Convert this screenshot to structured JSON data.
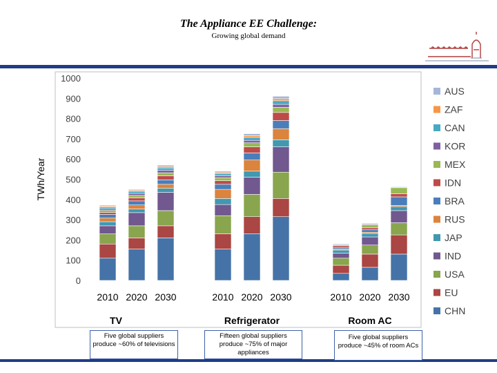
{
  "slide": {
    "title": "The Appliance EE Challenge:",
    "subtitle": "Growing global demand",
    "notes": [
      "Five global suppliers produce ~60% of televisions",
      "Fifteen global suppliers produce ~75% of major appliances",
      "Five global  suppliers produce ~45% of room ACs"
    ],
    "accent_color": "#1f3c88"
  },
  "chart_data": {
    "type": "bar",
    "stacked": true,
    "ylabel": "TWh/Year",
    "ylim": [
      0,
      1000
    ],
    "yticks": [
      0,
      100,
      200,
      300,
      400,
      500,
      600,
      700,
      800,
      900,
      1000
    ],
    "grid": false,
    "legend_position": "right",
    "groups": [
      "TV",
      "Refrigerator",
      "Room AC"
    ],
    "years": [
      "2010",
      "2020",
      "2030"
    ],
    "series": [
      {
        "name": "CHN",
        "color": "#4573a7",
        "values": [
          [
            110,
            155,
            210
          ],
          [
            155,
            230,
            315
          ],
          [
            35,
            65,
            130
          ]
        ]
      },
      {
        "name": "EU",
        "color": "#aa4643",
        "values": [
          [
            70,
            55,
            60
          ],
          [
            75,
            85,
            90
          ],
          [
            40,
            65,
            95
          ]
        ]
      },
      {
        "name": "USA",
        "color": "#89a54e",
        "values": [
          [
            50,
            60,
            75
          ],
          [
            90,
            110,
            130
          ],
          [
            35,
            45,
            60
          ]
        ]
      },
      {
        "name": "IND",
        "color": "#71588f",
        "values": [
          [
            40,
            65,
            90
          ],
          [
            55,
            85,
            125
          ],
          [
            25,
            40,
            60
          ]
        ]
      },
      {
        "name": "JAP",
        "color": "#4198af",
        "values": [
          [
            20,
            18,
            20
          ],
          [
            30,
            30,
            35
          ],
          [
            15,
            17,
            20
          ]
        ]
      },
      {
        "name": "RUS",
        "color": "#db843d",
        "values": [
          [
            18,
            20,
            20
          ],
          [
            45,
            55,
            55
          ],
          [
            6,
            6,
            6
          ]
        ]
      },
      {
        "name": "BRA",
        "color": "#4a7ebb",
        "values": [
          [
            18,
            20,
            22
          ],
          [
            25,
            35,
            40
          ],
          [
            8,
            12,
            42
          ]
        ]
      },
      {
        "name": "IDN",
        "color": "#be4b48",
        "values": [
          [
            10,
            15,
            20
          ],
          [
            18,
            30,
            40
          ],
          [
            8,
            10,
            15
          ]
        ]
      },
      {
        "name": "MEX",
        "color": "#98b954",
        "values": [
          [
            10,
            12,
            15
          ],
          [
            14,
            20,
            25
          ],
          [
            4,
            15,
            30
          ]
        ]
      },
      {
        "name": "KOR",
        "color": "#7d60a0",
        "values": [
          [
            8,
            10,
            12
          ],
          [
            10,
            12,
            15
          ],
          [
            3,
            4,
            3
          ]
        ]
      },
      {
        "name": "CAN",
        "color": "#46aac5",
        "values": [
          [
            8,
            10,
            12
          ],
          [
            10,
            15,
            18
          ],
          [
            3,
            3,
            3
          ]
        ]
      },
      {
        "name": "ZAF",
        "color": "#f79646",
        "values": [
          [
            5,
            5,
            7
          ],
          [
            7,
            8,
            10
          ],
          [
            2,
            2,
            2
          ]
        ]
      },
      {
        "name": "AUS",
        "color": "#a5b6d8",
        "values": [
          [
            5,
            5,
            7
          ],
          [
            6,
            10,
            12
          ],
          [
            1,
            1,
            1
          ]
        ]
      }
    ]
  }
}
